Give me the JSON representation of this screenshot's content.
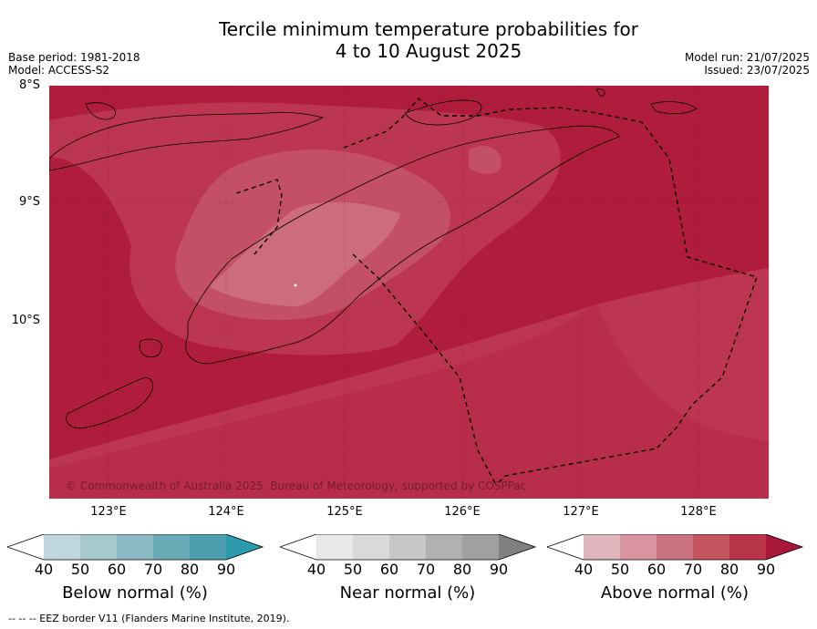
{
  "title": {
    "line1": "Tercile minimum temperature probabilities for",
    "line2": "4 to 10 August 2025"
  },
  "meta": {
    "base_period": "Base period: 1981-2018",
    "model": "Model: ACCESS-S2",
    "model_run": "Model run: 21/07/2025",
    "issued": "Issued: 23/07/2025"
  },
  "map": {
    "lat_labels": [
      "8°S",
      "9°S",
      "10°S"
    ],
    "lon_labels": [
      "123°E",
      "124°E",
      "125°E",
      "126°E",
      "127°E",
      "128°E"
    ],
    "lon_range": [
      122.5,
      128.6
    ],
    "lat_range": [
      -11.5,
      -8.0
    ],
    "copyright": "© Commonwealth of Australia 2025. Bureau of Meteorology, supported by COSPPac",
    "colors": {
      "above_90": "#b01c3b",
      "above_80": "#bd3651",
      "above_70": "#c45066",
      "above_60": "#cd6c7a",
      "above_50": "#d98e9b"
    }
  },
  "legend": {
    "tick_values": [
      "40",
      "50",
      "60",
      "70",
      "80",
      "90"
    ],
    "below": {
      "title": "Below normal (%)",
      "colors": [
        "#ffffff",
        "#bfd6dd",
        "#a6c8cf",
        "#8bb8c3",
        "#6aa9b6",
        "#4d9fb0",
        "#2d9aae"
      ]
    },
    "near": {
      "title": "Near normal (%)",
      "colors": [
        "#ffffff",
        "#e8e8e8",
        "#d9d9d9",
        "#c7c7c7",
        "#b1b1b1",
        "#a0a0a0",
        "#808080"
      ]
    },
    "above": {
      "title": "Above normal (%)",
      "colors": [
        "#ffffff",
        "#e0b5bd",
        "#d8959f",
        "#cb7480",
        "#c4545f",
        "#b8354a",
        "#a8173a"
      ]
    }
  },
  "footnote": "--  --  -- EEZ border V11 (Flanders Marine Institute, 2019)."
}
